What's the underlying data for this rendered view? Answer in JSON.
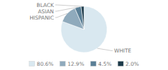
{
  "chart_data": {
    "type": "pie",
    "categories": [
      "WHITE",
      "HISPANIC",
      "ASIAN",
      "BLACK"
    ],
    "values": [
      80.6,
      12.9,
      4.5,
      2.0
    ],
    "value_labels": [
      "80.6%",
      "12.9%",
      "4.5%",
      "2.0%"
    ],
    "colors": [
      "#d9e8f0",
      "#8faabc",
      "#5a7f96",
      "#1c3a4a"
    ]
  }
}
